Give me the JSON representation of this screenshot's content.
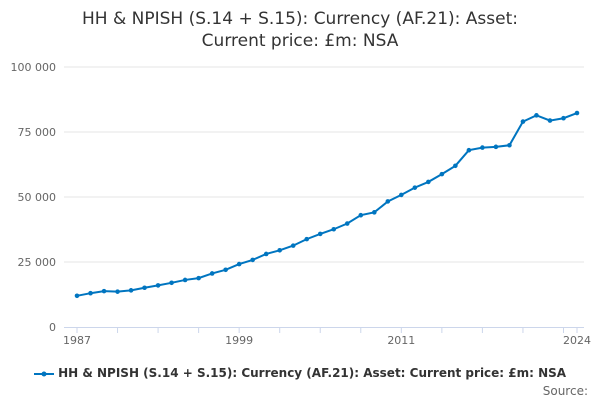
{
  "chart_data": {
    "type": "line",
    "title": "HH & NPISH (S.14 + S.15): Currency (AF.21): Asset: Current price: £m: NSA",
    "title_lines": [
      "HH & NPISH (S.14 + S.15): Currency (AF.21): Asset:",
      "Current price: £m: NSA"
    ],
    "xlabel": "",
    "ylabel": "",
    "ylim": [
      0,
      100000
    ],
    "yticks": [
      0,
      25000,
      50000,
      75000,
      100000
    ],
    "ytick_labels": [
      "0",
      "25 000",
      "50 000",
      "75 000",
      "100 000"
    ],
    "xtick_labels": [
      "1987",
      "1999",
      "2011",
      "2024"
    ],
    "x": [
      1987,
      1988,
      1989,
      1990,
      1991,
      1992,
      1993,
      1994,
      1995,
      1996,
      1997,
      1998,
      1999,
      2000,
      2001,
      2002,
      2003,
      2004,
      2005,
      2006,
      2007,
      2008,
      2009,
      2010,
      2011,
      2012,
      2013,
      2014,
      2015,
      2016,
      2017,
      2018,
      2019,
      2020,
      2021,
      2022,
      2023,
      2024
    ],
    "series": [
      {
        "name": "HH & NPISH (S.14 + S.15): Currency (AF.21): Asset: Current price: £m: NSA",
        "color": "#0075c0",
        "values": [
          12000,
          13000,
          13800,
          13600,
          14100,
          15100,
          16000,
          17000,
          18100,
          18800,
          20600,
          22000,
          24200,
          25800,
          28100,
          29500,
          31300,
          33800,
          35800,
          37600,
          39800,
          43000,
          44100,
          48300,
          50800,
          53600,
          55800,
          58800,
          62000,
          68000,
          69000,
          69300,
          69900,
          79000,
          81400,
          79400,
          80300,
          82300
        ]
      }
    ],
    "legend": "bottom",
    "grid": true
  },
  "source_label": "Source:"
}
